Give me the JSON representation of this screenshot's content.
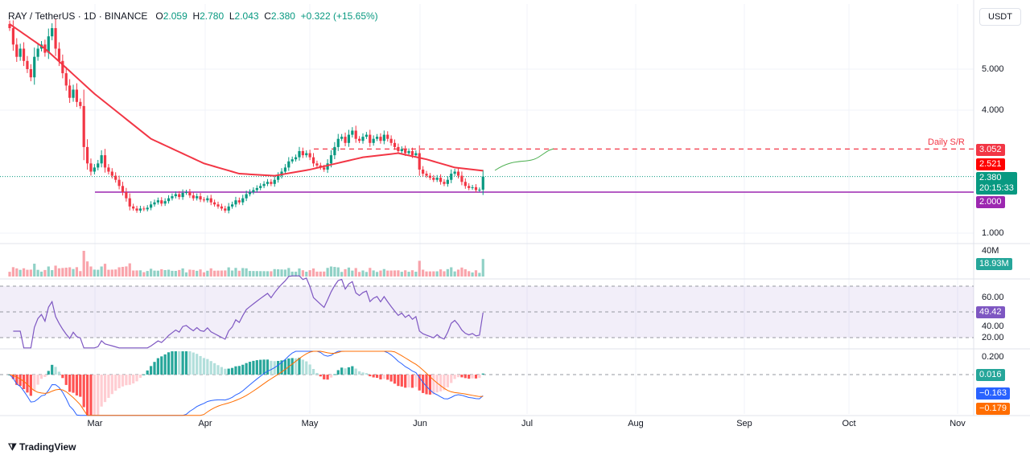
{
  "header": {
    "symbol": "RAY / TetherUS · 1D · BINANCE",
    "o_label": "O",
    "o": "2.059",
    "h_label": "H",
    "h": "2.780",
    "l_label": "L",
    "l": "2.043",
    "c_label": "C",
    "c": "2.380",
    "change": "+0.322 (+15.65%)"
  },
  "currency": "USDT",
  "brand": "TradingView",
  "price_axis": [
    "5.000",
    "4.000",
    "1.000"
  ],
  "labels": {
    "sr_level": "3.052",
    "sr_text": "Daily S/R",
    "ema": "2.521",
    "last": "2.380",
    "countdown": "20:15:33",
    "support": "2.000",
    "volume_axis": "40M",
    "volume_last": "18.93M",
    "rsi_60": "60.00",
    "rsi_40": "40.00",
    "rsi_20": "20.00",
    "rsi_last": "49.42",
    "macd_axis": "0.200",
    "macd_hist": "0.016",
    "macd_line": "−0.163",
    "signal_line": "−0.179"
  },
  "time_axis": [
    "Mar",
    "Apr",
    "May",
    "Jun",
    "Jul",
    "Aug",
    "Sep",
    "Oct",
    "Nov"
  ],
  "colors": {
    "up": "#089981",
    "down": "#f23645",
    "ema": "#f23645",
    "support": "#9c27b0",
    "rsi": "#7e57c2",
    "macd": "#2962ff",
    "signal": "#ff6d00"
  },
  "chart_data": {
    "type": "candlestick",
    "start": "2025-02-05",
    "end": "2025-06-19",
    "first_open": 6.1,
    "closes": [
      6.0,
      5.6,
      5.3,
      5.5,
      5.2,
      5.0,
      4.8,
      5.3,
      5.5,
      5.6,
      5.4,
      5.8,
      6.0,
      5.5,
      5.2,
      4.9,
      4.6,
      4.3,
      4.5,
      4.2,
      4.1,
      3.1,
      2.7,
      2.5,
      2.6,
      2.7,
      2.9,
      2.6,
      2.5,
      2.4,
      2.3,
      2.15,
      2.0,
      1.85,
      1.65,
      1.6,
      1.55,
      1.6,
      1.58,
      1.62,
      1.7,
      1.75,
      1.8,
      1.72,
      1.78,
      1.85,
      1.9,
      1.95,
      1.88,
      1.98,
      2.0,
      1.92,
      1.85,
      1.9,
      1.82,
      1.8,
      1.85,
      1.75,
      1.7,
      1.65,
      1.6,
      1.55,
      1.65,
      1.7,
      1.8,
      1.75,
      1.85,
      1.95,
      2.0,
      2.05,
      2.1,
      2.15,
      2.2,
      2.25,
      2.2,
      2.3,
      2.4,
      2.5,
      2.6,
      2.75,
      2.8,
      2.85,
      3.0,
      2.9,
      2.95,
      2.85,
      2.7,
      2.65,
      2.6,
      2.55,
      2.7,
      2.9,
      3.1,
      3.3,
      3.35,
      3.2,
      3.4,
      3.5,
      3.3,
      3.25,
      3.35,
      3.4,
      3.2,
      3.3,
      3.35,
      3.25,
      3.4,
      3.3,
      3.2,
      3.1,
      3.0,
      3.05,
      2.95,
      3.0,
      2.9,
      2.95,
      2.55,
      2.45,
      2.4,
      2.35,
      2.3,
      2.35,
      2.25,
      2.2,
      2.3,
      2.45,
      2.5,
      2.4,
      2.25,
      2.15,
      2.1,
      2.12,
      2.05,
      2.06,
      2.38
    ],
    "ema_samples": [
      [
        0,
        6.1
      ],
      [
        10,
        5.5
      ],
      [
        24,
        4.4
      ],
      [
        40,
        3.3
      ],
      [
        55,
        2.7
      ],
      [
        65,
        2.45
      ],
      [
        75,
        2.4
      ],
      [
        85,
        2.55
      ],
      [
        100,
        2.85
      ],
      [
        110,
        2.95
      ],
      [
        118,
        2.8
      ],
      [
        126,
        2.6
      ],
      [
        134,
        2.521
      ]
    ],
    "support": 2.0,
    "resistance": 3.052,
    "ylim": [
      0.9,
      6.6
    ],
    "rsi_levels": [
      30,
      70
    ],
    "rsi_last": 49.42,
    "volume_last_m": 18.93
  }
}
